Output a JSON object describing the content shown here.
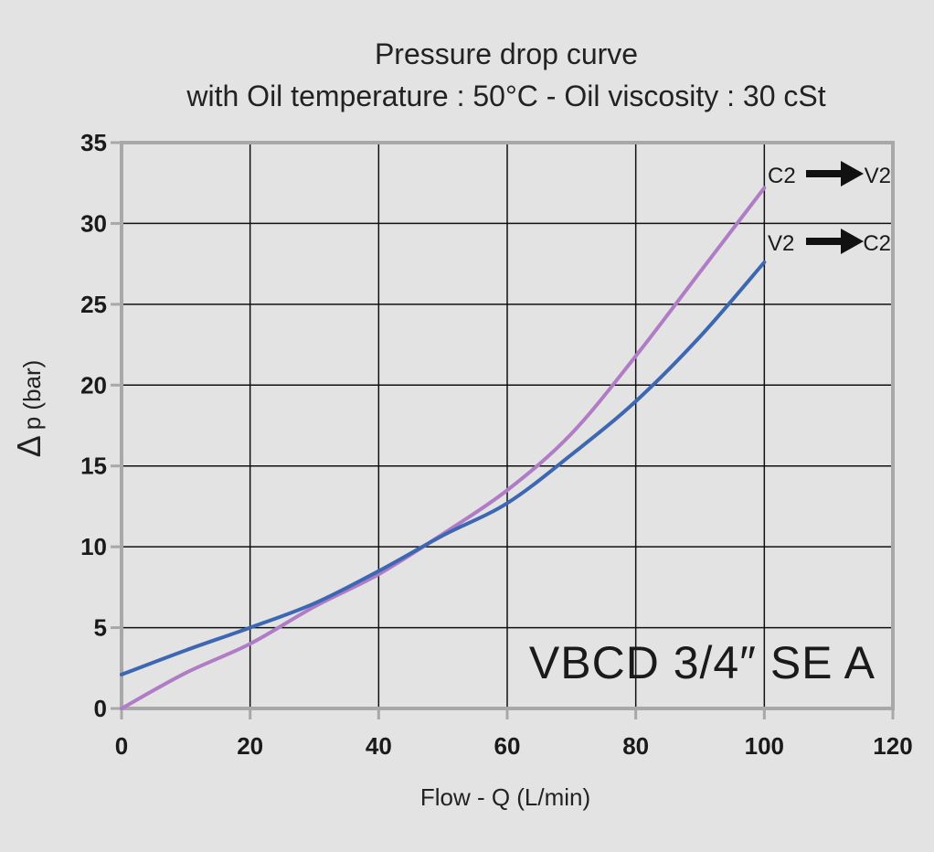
{
  "chart_data": {
    "type": "line",
    "title": "Pressure drop curve",
    "subtitle": "with Oil temperature :  50°C - Oil viscosity : 30 cSt",
    "xlabel": "Flow - Q (L/min)",
    "ylabel": "p (bar)",
    "ylabel_symbol": "Δ",
    "xlim": [
      0,
      120
    ],
    "ylim": [
      0,
      35
    ],
    "x_ticks": [
      0,
      20,
      40,
      60,
      80,
      100,
      120
    ],
    "y_ticks": [
      0,
      5,
      10,
      15,
      20,
      25,
      30,
      35
    ],
    "grid": true,
    "annotation": "VBCD 3/4″ SE A",
    "series": [
      {
        "name": "C2 → V2",
        "from": "C2",
        "to": "V2",
        "color": "#b07cc6",
        "x": [
          0,
          10,
          20,
          30,
          40,
          50,
          60,
          70,
          80,
          90,
          100
        ],
        "y": [
          0,
          2.2,
          4.0,
          6.3,
          8.3,
          10.8,
          13.5,
          17.0,
          21.8,
          27.0,
          32.2
        ]
      },
      {
        "name": "V2 → C2",
        "from": "V2",
        "to": "C2",
        "color": "#3d67b2",
        "x": [
          0,
          10,
          20,
          30,
          40,
          50,
          60,
          70,
          80,
          90,
          100
        ],
        "y": [
          2.1,
          3.6,
          5.0,
          6.5,
          8.5,
          10.7,
          12.7,
          15.7,
          19.0,
          23.0,
          27.6
        ]
      }
    ]
  }
}
